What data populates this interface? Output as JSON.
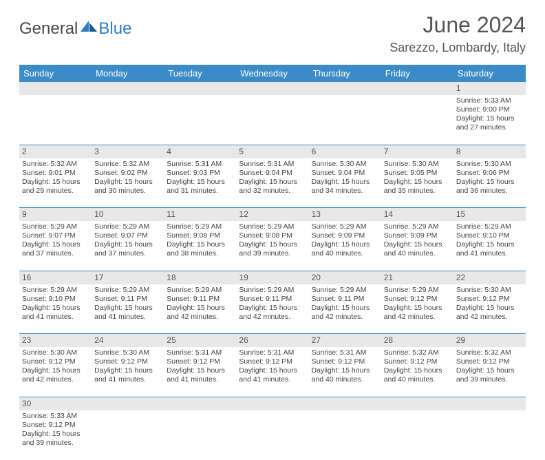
{
  "brand": {
    "part1": "General",
    "part2": "Blue"
  },
  "title": "June 2024",
  "location": "Sarezzo, Lombardy, Italy",
  "colors": {
    "header_bg": "#3b8bc8",
    "header_text": "#ffffff",
    "daynum_bg": "#e8e8e8",
    "cell_border": "#3b8bc8",
    "text": "#444444",
    "brand_gray": "#4a4a4a",
    "brand_blue": "#2d7cc0"
  },
  "weekdays": [
    "Sunday",
    "Monday",
    "Tuesday",
    "Wednesday",
    "Thursday",
    "Friday",
    "Saturday"
  ],
  "weeks": [
    {
      "nums": [
        "",
        "",
        "",
        "",
        "",
        "",
        "1"
      ],
      "cells": [
        null,
        null,
        null,
        null,
        null,
        null,
        {
          "sunrise": "Sunrise: 5:33 AM",
          "sunset": "Sunset: 9:00 PM",
          "day1": "Daylight: 15 hours",
          "day2": "and 27 minutes."
        }
      ]
    },
    {
      "nums": [
        "2",
        "3",
        "4",
        "5",
        "6",
        "7",
        "8"
      ],
      "cells": [
        {
          "sunrise": "Sunrise: 5:32 AM",
          "sunset": "Sunset: 9:01 PM",
          "day1": "Daylight: 15 hours",
          "day2": "and 29 minutes."
        },
        {
          "sunrise": "Sunrise: 5:32 AM",
          "sunset": "Sunset: 9:02 PM",
          "day1": "Daylight: 15 hours",
          "day2": "and 30 minutes."
        },
        {
          "sunrise": "Sunrise: 5:31 AM",
          "sunset": "Sunset: 9:03 PM",
          "day1": "Daylight: 15 hours",
          "day2": "and 31 minutes."
        },
        {
          "sunrise": "Sunrise: 5:31 AM",
          "sunset": "Sunset: 9:04 PM",
          "day1": "Daylight: 15 hours",
          "day2": "and 32 minutes."
        },
        {
          "sunrise": "Sunrise: 5:30 AM",
          "sunset": "Sunset: 9:04 PM",
          "day1": "Daylight: 15 hours",
          "day2": "and 34 minutes."
        },
        {
          "sunrise": "Sunrise: 5:30 AM",
          "sunset": "Sunset: 9:05 PM",
          "day1": "Daylight: 15 hours",
          "day2": "and 35 minutes."
        },
        {
          "sunrise": "Sunrise: 5:30 AM",
          "sunset": "Sunset: 9:06 PM",
          "day1": "Daylight: 15 hours",
          "day2": "and 36 minutes."
        }
      ]
    },
    {
      "nums": [
        "9",
        "10",
        "11",
        "12",
        "13",
        "14",
        "15"
      ],
      "cells": [
        {
          "sunrise": "Sunrise: 5:29 AM",
          "sunset": "Sunset: 9:07 PM",
          "day1": "Daylight: 15 hours",
          "day2": "and 37 minutes."
        },
        {
          "sunrise": "Sunrise: 5:29 AM",
          "sunset": "Sunset: 9:07 PM",
          "day1": "Daylight: 15 hours",
          "day2": "and 37 minutes."
        },
        {
          "sunrise": "Sunrise: 5:29 AM",
          "sunset": "Sunset: 9:08 PM",
          "day1": "Daylight: 15 hours",
          "day2": "and 38 minutes."
        },
        {
          "sunrise": "Sunrise: 5:29 AM",
          "sunset": "Sunset: 9:08 PM",
          "day1": "Daylight: 15 hours",
          "day2": "and 39 minutes."
        },
        {
          "sunrise": "Sunrise: 5:29 AM",
          "sunset": "Sunset: 9:09 PM",
          "day1": "Daylight: 15 hours",
          "day2": "and 40 minutes."
        },
        {
          "sunrise": "Sunrise: 5:29 AM",
          "sunset": "Sunset: 9:09 PM",
          "day1": "Daylight: 15 hours",
          "day2": "and 40 minutes."
        },
        {
          "sunrise": "Sunrise: 5:29 AM",
          "sunset": "Sunset: 9:10 PM",
          "day1": "Daylight: 15 hours",
          "day2": "and 41 minutes."
        }
      ]
    },
    {
      "nums": [
        "16",
        "17",
        "18",
        "19",
        "20",
        "21",
        "22"
      ],
      "cells": [
        {
          "sunrise": "Sunrise: 5:29 AM",
          "sunset": "Sunset: 9:10 PM",
          "day1": "Daylight: 15 hours",
          "day2": "and 41 minutes."
        },
        {
          "sunrise": "Sunrise: 5:29 AM",
          "sunset": "Sunset: 9:11 PM",
          "day1": "Daylight: 15 hours",
          "day2": "and 41 minutes."
        },
        {
          "sunrise": "Sunrise: 5:29 AM",
          "sunset": "Sunset: 9:11 PM",
          "day1": "Daylight: 15 hours",
          "day2": "and 42 minutes."
        },
        {
          "sunrise": "Sunrise: 5:29 AM",
          "sunset": "Sunset: 9:11 PM",
          "day1": "Daylight: 15 hours",
          "day2": "and 42 minutes."
        },
        {
          "sunrise": "Sunrise: 5:29 AM",
          "sunset": "Sunset: 9:11 PM",
          "day1": "Daylight: 15 hours",
          "day2": "and 42 minutes."
        },
        {
          "sunrise": "Sunrise: 5:29 AM",
          "sunset": "Sunset: 9:12 PM",
          "day1": "Daylight: 15 hours",
          "day2": "and 42 minutes."
        },
        {
          "sunrise": "Sunrise: 5:30 AM",
          "sunset": "Sunset: 9:12 PM",
          "day1": "Daylight: 15 hours",
          "day2": "and 42 minutes."
        }
      ]
    },
    {
      "nums": [
        "23",
        "24",
        "25",
        "26",
        "27",
        "28",
        "29"
      ],
      "cells": [
        {
          "sunrise": "Sunrise: 5:30 AM",
          "sunset": "Sunset: 9:12 PM",
          "day1": "Daylight: 15 hours",
          "day2": "and 42 minutes."
        },
        {
          "sunrise": "Sunrise: 5:30 AM",
          "sunset": "Sunset: 9:12 PM",
          "day1": "Daylight: 15 hours",
          "day2": "and 41 minutes."
        },
        {
          "sunrise": "Sunrise: 5:31 AM",
          "sunset": "Sunset: 9:12 PM",
          "day1": "Daylight: 15 hours",
          "day2": "and 41 minutes."
        },
        {
          "sunrise": "Sunrise: 5:31 AM",
          "sunset": "Sunset: 9:12 PM",
          "day1": "Daylight: 15 hours",
          "day2": "and 41 minutes."
        },
        {
          "sunrise": "Sunrise: 5:31 AM",
          "sunset": "Sunset: 9:12 PM",
          "day1": "Daylight: 15 hours",
          "day2": "and 40 minutes."
        },
        {
          "sunrise": "Sunrise: 5:32 AM",
          "sunset": "Sunset: 9:12 PM",
          "day1": "Daylight: 15 hours",
          "day2": "and 40 minutes."
        },
        {
          "sunrise": "Sunrise: 5:32 AM",
          "sunset": "Sunset: 9:12 PM",
          "day1": "Daylight: 15 hours",
          "day2": "and 39 minutes."
        }
      ]
    },
    {
      "nums": [
        "30",
        "",
        "",
        "",
        "",
        "",
        ""
      ],
      "cells": [
        {
          "sunrise": "Sunrise: 5:33 AM",
          "sunset": "Sunset: 9:12 PM",
          "day1": "Daylight: 15 hours",
          "day2": "and 39 minutes."
        },
        null,
        null,
        null,
        null,
        null,
        null
      ]
    }
  ]
}
